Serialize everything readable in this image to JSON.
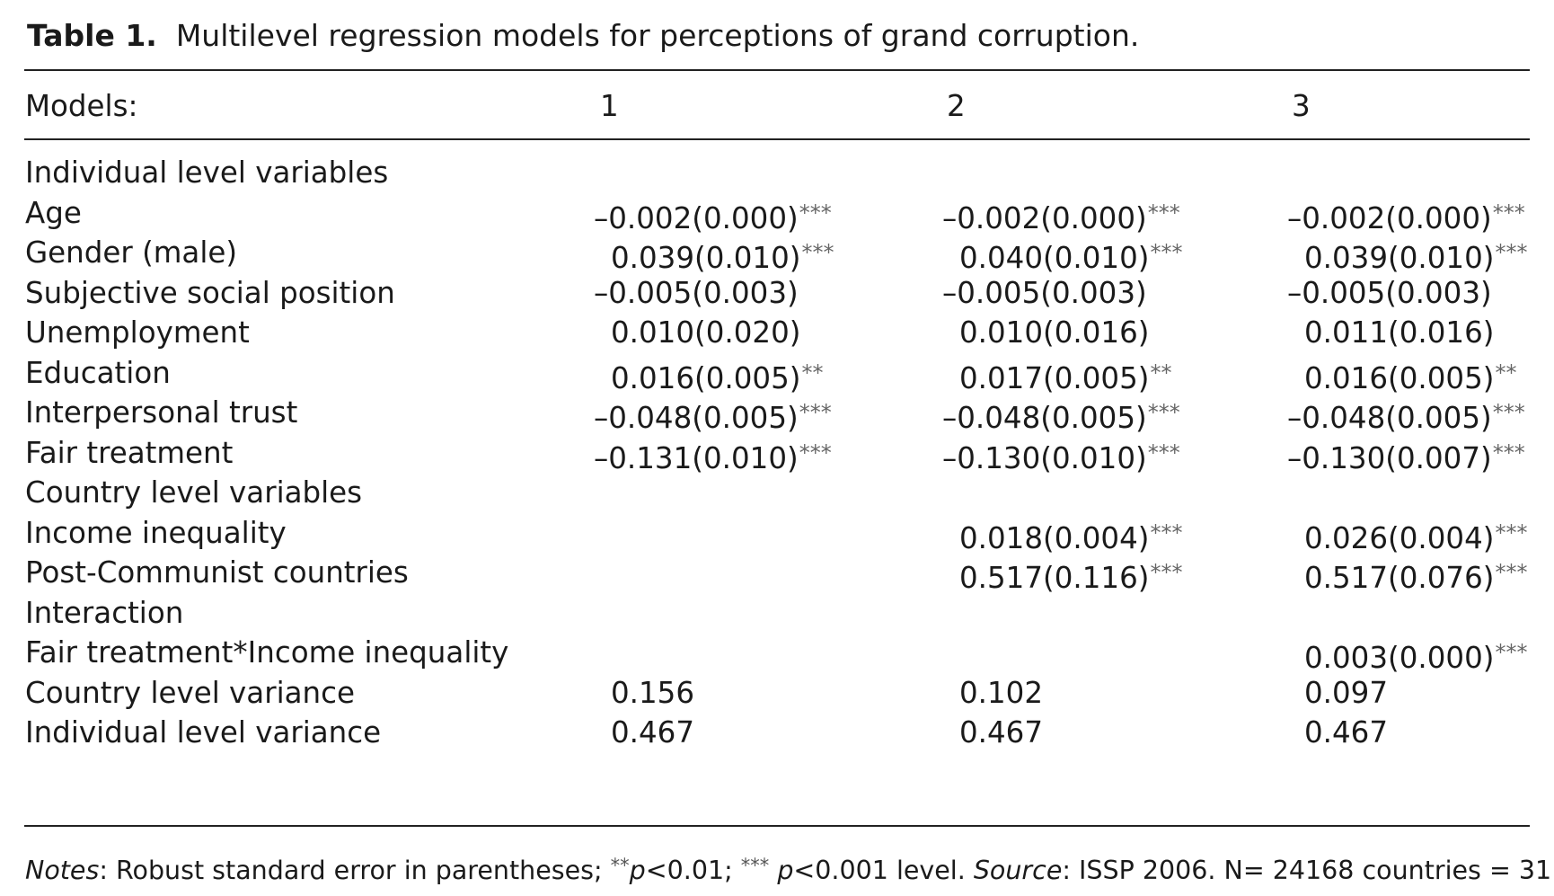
{
  "caption": {
    "label": "Table 1.",
    "text": "Multilevel regression models for perceptions of grand corruption."
  },
  "header": {
    "first": "Models:",
    "cols": [
      "1",
      "2",
      "3"
    ]
  },
  "rows": [
    {
      "label": "Individual level variables",
      "cells": [
        null,
        null,
        null
      ]
    },
    {
      "label": "Age",
      "cells": [
        {
          "v": "–0.002(0.000)",
          "s": "***"
        },
        {
          "v": "–0.002(0.000)",
          "s": "***"
        },
        {
          "v": "–0.002(0.000)",
          "s": "***"
        }
      ]
    },
    {
      "label": "Gender (male)",
      "cells": [
        {
          "v": "0.039(0.010)",
          "s": "***"
        },
        {
          "v": "0.040(0.010)",
          "s": "***"
        },
        {
          "v": "0.039(0.010)",
          "s": "***"
        }
      ]
    },
    {
      "label": "Subjective social position",
      "cells": [
        {
          "v": "–0.005(0.003)",
          "s": ""
        },
        {
          "v": "–0.005(0.003)",
          "s": ""
        },
        {
          "v": "–0.005(0.003)",
          "s": ""
        }
      ]
    },
    {
      "label": "Unemployment",
      "cells": [
        {
          "v": "0.010(0.020)",
          "s": ""
        },
        {
          "v": "0.010(0.016)",
          "s": ""
        },
        {
          "v": "0.011(0.016)",
          "s": ""
        }
      ]
    },
    {
      "label": "Education",
      "cells": [
        {
          "v": "0.016(0.005)",
          "s": "**"
        },
        {
          "v": "0.017(0.005)",
          "s": "**"
        },
        {
          "v": "0.016(0.005)",
          "s": "**"
        }
      ]
    },
    {
      "label": "Interpersonal trust",
      "cells": [
        {
          "v": "–0.048(0.005)",
          "s": "***"
        },
        {
          "v": "–0.048(0.005)",
          "s": "***"
        },
        {
          "v": "–0.048(0.005)",
          "s": "***"
        }
      ]
    },
    {
      "label": "Fair treatment",
      "cells": [
        {
          "v": "–0.131(0.010)",
          "s": "***"
        },
        {
          "v": "–0.130(0.010)",
          "s": "***"
        },
        {
          "v": "–0.130(0.007)",
          "s": "***"
        }
      ]
    },
    {
      "label": "Country level variables",
      "cells": [
        null,
        null,
        null
      ]
    },
    {
      "label": "Income inequality",
      "cells": [
        null,
        {
          "v": "0.018(0.004)",
          "s": "***"
        },
        {
          "v": "0.026(0.004)",
          "s": "***"
        }
      ]
    },
    {
      "label": "Post-Communist countries",
      "cells": [
        null,
        {
          "v": "0.517(0.116)",
          "s": "***"
        },
        {
          "v": "0.517(0.076)",
          "s": "***"
        }
      ]
    },
    {
      "label": "Interaction",
      "cells": [
        null,
        null,
        null
      ]
    },
    {
      "label": "Fair treatment*Income inequality",
      "cells": [
        null,
        null,
        {
          "v": "0.003(0.000)",
          "s": "***"
        }
      ]
    },
    {
      "label": "Country level variance",
      "cells": [
        {
          "v": "0.156",
          "s": ""
        },
        {
          "v": "0.102",
          "s": ""
        },
        {
          "v": "0.097",
          "s": ""
        }
      ]
    },
    {
      "label": "Individual level variance",
      "cells": [
        {
          "v": "0.467",
          "s": ""
        },
        {
          "v": "0.467",
          "s": ""
        },
        {
          "v": "0.467",
          "s": ""
        }
      ]
    }
  ],
  "notes": {
    "notes_label": "Notes",
    "text1": ": Robust standard error in parentheses; ",
    "sig2": "**",
    "p1": "p",
    "text2": "<0.01; ",
    "sig3": "***",
    "p2": " p",
    "text3": "<0.001 level. ",
    "source_label": "Source",
    "text4": ": ISSP 2006. N= 24168 countries = 31."
  }
}
